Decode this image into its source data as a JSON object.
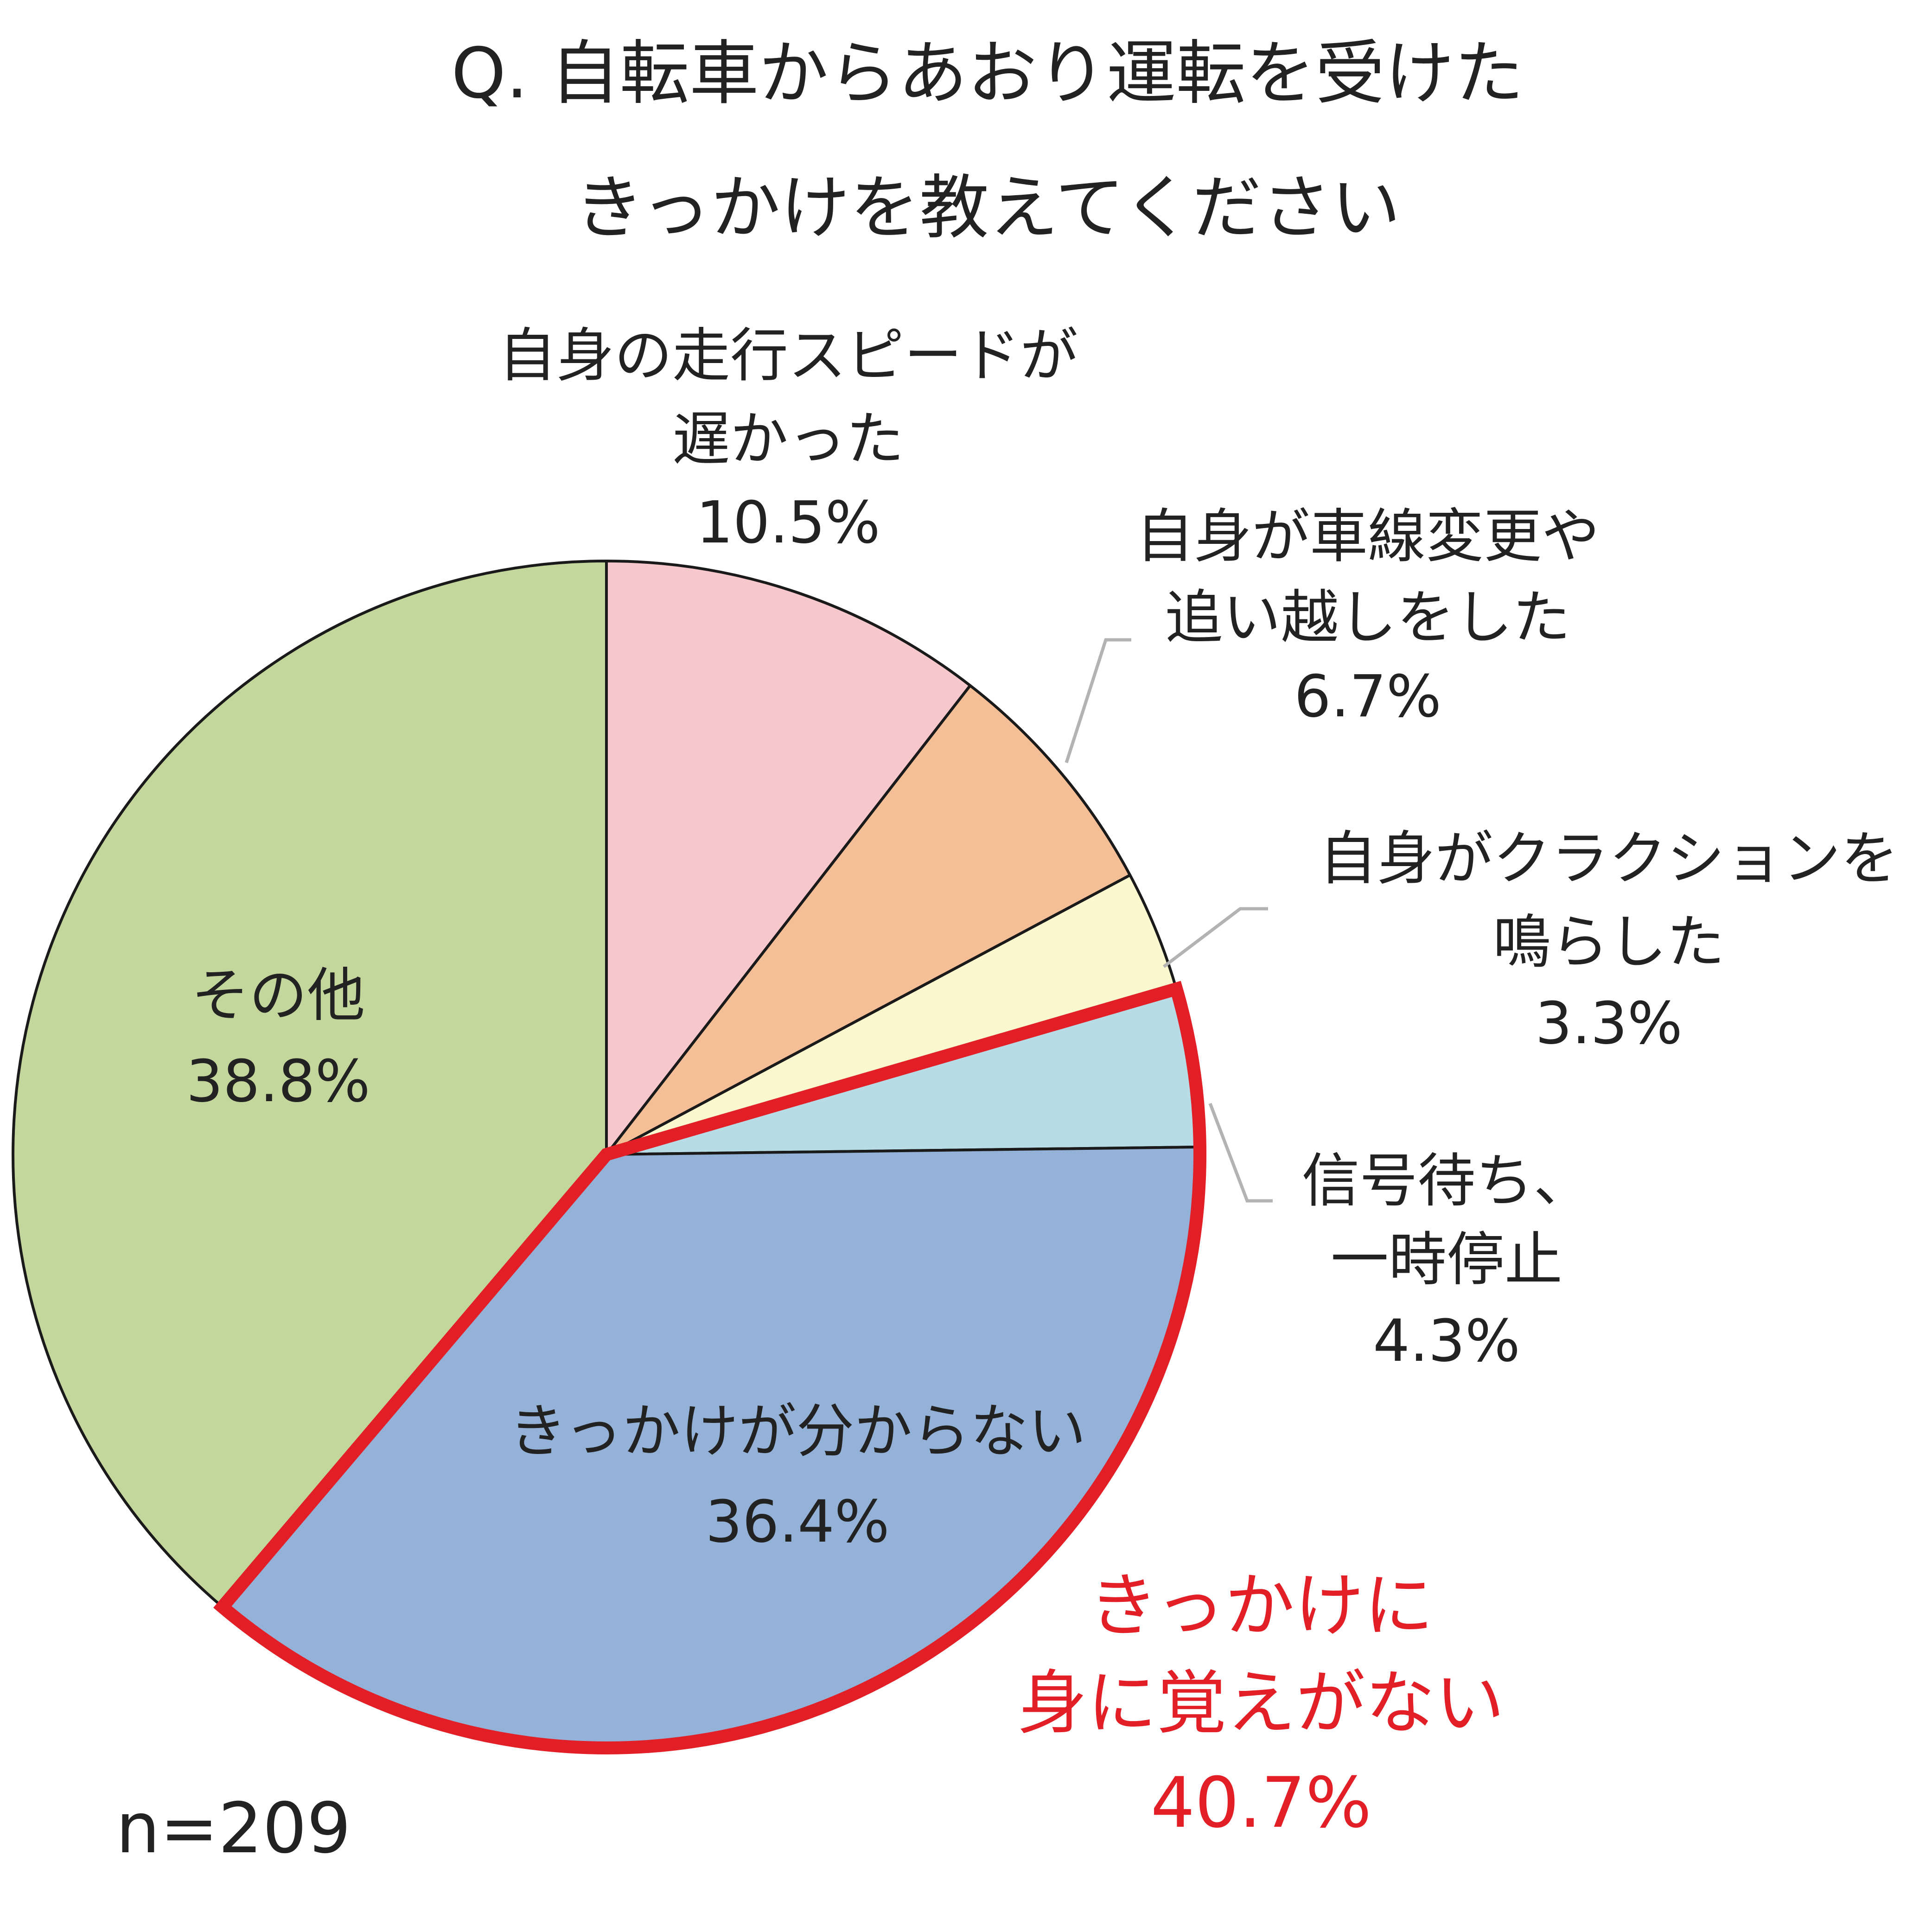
{
  "chart_data": {
    "type": "pie",
    "title_lines": [
      "Q. 自転車からあおり運転を受けた",
      "きっかけを教えてください"
    ],
    "sample_size": "n=209",
    "start_angle_deg": 0,
    "direction": "clockwise",
    "slices": [
      {
        "label_lines": [
          "自身の走行スピードが",
          "遅かった"
        ],
        "value": 10.5,
        "value_label": "10.5%",
        "color": "#f6c8cc"
      },
      {
        "label_lines": [
          "自身が車線変更や",
          "追い越しをした"
        ],
        "value": 6.7,
        "value_label": "6.7%",
        "color": "#f4bf96"
      },
      {
        "label_lines": [
          "自身がクラクションを",
          "鳴らした"
        ],
        "value": 3.3,
        "value_label": "3.3%",
        "color": "#fbf7cf"
      },
      {
        "label_lines": [
          "信号待ち、",
          "一時停止"
        ],
        "value": 4.3,
        "value_label": "4.3%",
        "color": "#b7dce6"
      },
      {
        "label_lines": [
          "きっかけが分からない"
        ],
        "value": 36.4,
        "value_label": "36.4%",
        "color": "#94b2d7"
      },
      {
        "label_lines": [
          "その他"
        ],
        "value": 38.8,
        "value_label": "38.8%",
        "color": "#c3d69c"
      }
    ],
    "highlight": {
      "label_lines": [
        "きっかけに",
        "身に覚えがない"
      ],
      "value": 40.7,
      "value_label": "40.7%",
      "slice_indices": [
        3,
        4
      ],
      "color": "#e21e26"
    }
  }
}
